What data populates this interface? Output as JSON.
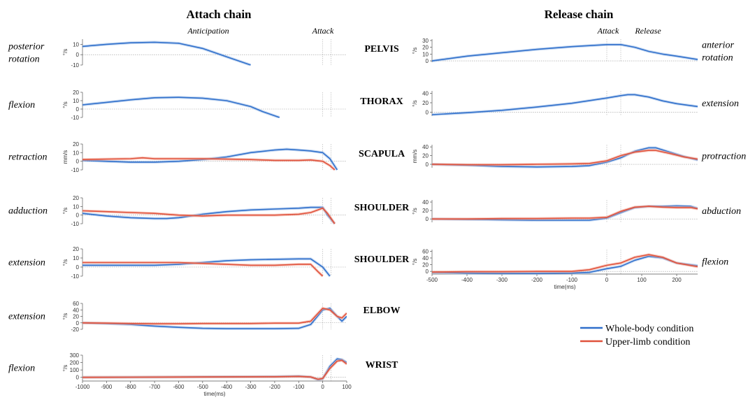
{
  "titles": {
    "left": "Attach chain",
    "right": "Release chain"
  },
  "events": {
    "left": [
      "Anticipation",
      "Attack"
    ],
    "right": [
      "Attack",
      "Release"
    ]
  },
  "segments": [
    "PELVIS",
    "THORAX",
    "SCAPULA",
    "SHOULDER",
    "SHOULDER",
    "ELBOW",
    "WRIST"
  ],
  "legend": {
    "whole": "Whole-body condition",
    "upper": "Upper-limb condition"
  },
  "colors": {
    "whole": "#2f6fcb",
    "upper": "#e0523c",
    "whole_band": "#9bbbe8",
    "upper_band": "#f2a898"
  },
  "chart_data": [
    {
      "type": "line",
      "panel": "attach",
      "segment": "PELVIS",
      "direction": "posterior rotation",
      "ylabel": "°/s",
      "yticks": [
        -10,
        0,
        10
      ],
      "ylim": [
        -10,
        15
      ],
      "xlim": [
        -1000,
        100
      ],
      "series": [
        {
          "name": "Whole-body condition",
          "x": [
            -1000,
            -900,
            -800,
            -700,
            -600,
            -500,
            -400,
            -350,
            -300
          ],
          "y": [
            8,
            10,
            11.5,
            12,
            11,
            6,
            -2,
            -6,
            -10
          ]
        }
      ]
    },
    {
      "type": "line",
      "panel": "attach",
      "segment": "THORAX",
      "direction": "flexion",
      "ylabel": "°/s",
      "yticks": [
        -10,
        0,
        10,
        20
      ],
      "ylim": [
        -10,
        20
      ],
      "xlim": [
        -1000,
        100
      ],
      "series": [
        {
          "name": "Whole-body condition",
          "x": [
            -1000,
            -900,
            -800,
            -700,
            -600,
            -500,
            -400,
            -300,
            -250,
            -180
          ],
          "y": [
            5,
            8,
            11,
            13.5,
            14,
            13,
            10,
            3,
            -3,
            -10
          ]
        }
      ]
    },
    {
      "type": "line",
      "panel": "attach",
      "segment": "SCAPULA",
      "direction": "retraction",
      "ylabel": "mm/s",
      "yticks": [
        -10,
        0,
        10,
        20
      ],
      "ylim": [
        -10,
        20
      ],
      "xlim": [
        -1000,
        100
      ],
      "series": [
        {
          "name": "Whole-body condition",
          "x": [
            -1000,
            -900,
            -800,
            -700,
            -600,
            -500,
            -400,
            -300,
            -200,
            -150,
            -100,
            -50,
            0,
            30,
            60
          ],
          "y": [
            1,
            0,
            -1,
            -1,
            0,
            2,
            5,
            10,
            13,
            14,
            13,
            12,
            10,
            3,
            -10
          ]
        },
        {
          "name": "Upper-limb condition",
          "x": [
            -1000,
            -900,
            -800,
            -750,
            -700,
            -600,
            -500,
            -400,
            -300,
            -200,
            -100,
            -50,
            0,
            30,
            50
          ],
          "y": [
            2,
            2.5,
            3,
            4,
            3,
            3,
            3,
            2.5,
            2,
            1,
            1,
            1.5,
            0,
            -5,
            -10
          ]
        }
      ]
    },
    {
      "type": "line",
      "panel": "attach",
      "segment": "SHOULDER",
      "direction": "adduction",
      "ylabel": "°/s",
      "yticks": [
        -10,
        0,
        10,
        20
      ],
      "ylim": [
        -10,
        20
      ],
      "xlim": [
        -1000,
        100
      ],
      "series": [
        {
          "name": "Whole-body condition",
          "x": [
            -1000,
            -900,
            -800,
            -700,
            -650,
            -600,
            -500,
            -400,
            -300,
            -200,
            -100,
            -50,
            0,
            20,
            50
          ],
          "y": [
            2,
            -1,
            -3,
            -4,
            -4,
            -3,
            1,
            4,
            6,
            7,
            8,
            9,
            9,
            0,
            -10
          ]
        },
        {
          "name": "Upper-limb condition",
          "x": [
            -1000,
            -900,
            -800,
            -700,
            -600,
            -500,
            -400,
            -300,
            -200,
            -100,
            -50,
            0,
            20,
            50
          ],
          "y": [
            5,
            4,
            3,
            2,
            0,
            -1,
            0,
            0,
            0,
            1,
            3,
            8,
            2,
            -10
          ]
        }
      ]
    },
    {
      "type": "line",
      "panel": "attach",
      "segment": "SHOULDER",
      "direction": "extension",
      "ylabel": "°/s",
      "yticks": [
        -10,
        0,
        10,
        20
      ],
      "ylim": [
        -10,
        20
      ],
      "xlim": [
        -1000,
        100
      ],
      "series": [
        {
          "name": "Whole-body condition",
          "x": [
            -1000,
            -900,
            -800,
            -700,
            -600,
            -500,
            -400,
            -300,
            -200,
            -100,
            -50,
            0,
            30
          ],
          "y": [
            2,
            2,
            2,
            2,
            3,
            5,
            7,
            8,
            8.5,
            9,
            9,
            0,
            -10
          ]
        },
        {
          "name": "Upper-limb condition",
          "x": [
            -1000,
            -900,
            -800,
            -700,
            -600,
            -500,
            -400,
            -300,
            -200,
            -100,
            -50,
            -20,
            0
          ],
          "y": [
            5,
            5,
            5,
            5,
            5,
            4,
            3,
            2,
            2,
            3,
            3,
            -5,
            -10
          ]
        }
      ]
    },
    {
      "type": "line",
      "panel": "attach",
      "segment": "ELBOW",
      "direction": "extension",
      "ylabel": "°/s",
      "yticks": [
        -20,
        0,
        20,
        40,
        60
      ],
      "ylim": [
        -20,
        60
      ],
      "xlim": [
        -1000,
        100
      ],
      "series": [
        {
          "name": "Whole-body condition",
          "x": [
            -1000,
            -900,
            -800,
            -700,
            -600,
            -500,
            -400,
            -300,
            -200,
            -100,
            -50,
            0,
            30,
            60,
            80,
            100
          ],
          "y": [
            0,
            -2,
            -5,
            -10,
            -14,
            -17,
            -18,
            -18,
            -18,
            -17,
            -5,
            40,
            45,
            20,
            5,
            20
          ]
        },
        {
          "name": "Upper-limb condition",
          "x": [
            -1000,
            -900,
            -800,
            -700,
            -600,
            -500,
            -400,
            -300,
            -200,
            -100,
            -50,
            0,
            30,
            60,
            80,
            100
          ],
          "y": [
            0,
            -1,
            -2,
            -3,
            -3,
            -2,
            -2,
            -2,
            -1,
            -1,
            5,
            45,
            40,
            20,
            15,
            30
          ]
        }
      ]
    },
    {
      "type": "line",
      "panel": "attach",
      "segment": "WRIST",
      "direction": "flexion",
      "ylabel": "°/s",
      "yticks": [
        0,
        100,
        200,
        300
      ],
      "ylim": [
        -50,
        300
      ],
      "xlim": [
        -1000,
        100
      ],
      "xlabel": "time(ms)",
      "xticks": [
        -1000,
        -900,
        -800,
        -700,
        -600,
        -500,
        -400,
        -300,
        -200,
        -100,
        0,
        100
      ],
      "series": [
        {
          "name": "Whole-body condition",
          "x": [
            -1000,
            -800,
            -600,
            -400,
            -200,
            -100,
            -50,
            -20,
            0,
            30,
            60,
            80,
            100
          ],
          "y": [
            0,
            2,
            5,
            8,
            10,
            15,
            5,
            -30,
            -20,
            150,
            250,
            240,
            200
          ]
        },
        {
          "name": "Upper-limb condition",
          "x": [
            -1000,
            -800,
            -600,
            -400,
            -200,
            -100,
            -50,
            -20,
            0,
            30,
            60,
            80,
            100
          ],
          "y": [
            0,
            2,
            4,
            6,
            8,
            12,
            5,
            -25,
            -15,
            120,
            220,
            230,
            180
          ]
        }
      ]
    },
    {
      "type": "line",
      "panel": "release",
      "segment": "PELVIS",
      "direction": "anterior rotation",
      "ylabel": "°/s",
      "yticks": [
        0,
        10,
        20,
        30
      ],
      "ylim": [
        -2,
        32
      ],
      "xlim": [
        -500,
        260
      ],
      "series": [
        {
          "name": "Whole-body condition",
          "x": [
            -500,
            -400,
            -300,
            -200,
            -100,
            0,
            40,
            80,
            120,
            160,
            200,
            260
          ],
          "y": [
            0,
            7,
            12,
            17,
            21,
            24,
            24,
            20,
            14,
            10,
            7,
            2
          ]
        }
      ]
    },
    {
      "type": "line",
      "panel": "release",
      "segment": "THORAX",
      "direction": "extension",
      "ylabel": "°/s",
      "yticks": [
        0,
        20,
        40
      ],
      "ylim": [
        -8,
        45
      ],
      "xlim": [
        -500,
        260
      ],
      "series": [
        {
          "name": "Whole-body condition",
          "x": [
            -500,
            -400,
            -300,
            -200,
            -100,
            0,
            40,
            60,
            80,
            120,
            160,
            200,
            260
          ],
          "y": [
            -5,
            -1,
            4,
            11,
            19,
            30,
            35,
            37,
            37,
            32,
            24,
            18,
            12
          ]
        }
      ]
    },
    {
      "type": "line",
      "panel": "release",
      "segment": "SCAPULA",
      "direction": "protraction",
      "ylabel": "mm/s",
      "yticks": [
        0,
        20,
        40
      ],
      "ylim": [
        -8,
        45
      ],
      "xlim": [
        -500,
        260
      ],
      "series": [
        {
          "name": "Whole-body condition",
          "x": [
            -500,
            -400,
            -300,
            -200,
            -100,
            -50,
            0,
            40,
            80,
            120,
            140,
            180,
            220,
            260
          ],
          "y": [
            0,
            -2,
            -5,
            -6,
            -5,
            -3,
            5,
            15,
            30,
            38,
            38,
            28,
            18,
            10
          ]
        },
        {
          "name": "Upper-limb condition",
          "x": [
            -500,
            -400,
            -300,
            -200,
            -100,
            -50,
            0,
            40,
            80,
            120,
            140,
            180,
            220,
            260
          ],
          "y": [
            0,
            -1,
            -1,
            0,
            1,
            2,
            8,
            20,
            28,
            32,
            32,
            25,
            17,
            12
          ]
        }
      ]
    },
    {
      "type": "line",
      "panel": "release",
      "segment": "SHOULDER",
      "direction": "abduction",
      "ylabel": "°/s",
      "yticks": [
        0,
        20,
        40
      ],
      "ylim": [
        -8,
        45
      ],
      "xlim": [
        -500,
        260
      ],
      "series": [
        {
          "name": "Whole-body condition",
          "x": [
            -500,
            -400,
            -300,
            -200,
            -100,
            -50,
            0,
            40,
            80,
            120,
            160,
            200,
            240,
            260
          ],
          "y": [
            0,
            -1,
            -2,
            -3,
            -3,
            -3,
            2,
            15,
            27,
            30,
            30,
            31,
            30,
            25
          ]
        },
        {
          "name": "Upper-limb condition",
          "x": [
            -500,
            -400,
            -300,
            -200,
            -100,
            -50,
            0,
            40,
            80,
            120,
            160,
            200,
            240,
            260
          ],
          "y": [
            0,
            0,
            1,
            1,
            2,
            2,
            4,
            18,
            28,
            30,
            28,
            27,
            27,
            24
          ]
        }
      ]
    },
    {
      "type": "line",
      "panel": "release",
      "segment": "SHOULDER",
      "direction": "flexion",
      "ylabel": "°/s",
      "yticks": [
        0,
        20,
        40,
        60
      ],
      "ylim": [
        -8,
        65
      ],
      "xlim": [
        -500,
        260
      ],
      "xlabel": "time(ms)",
      "xticks": [
        -500,
        -400,
        -300,
        -200,
        -100,
        0,
        100,
        200
      ],
      "series": [
        {
          "name": "Whole-body condition",
          "x": [
            -500,
            -400,
            -300,
            -200,
            -100,
            -50,
            0,
            40,
            80,
            120,
            160,
            200,
            260
          ],
          "y": [
            -3,
            -5,
            -6,
            -6,
            -5,
            -3,
            8,
            15,
            33,
            45,
            40,
            25,
            17
          ]
        },
        {
          "name": "Upper-limb condition",
          "x": [
            -500,
            -400,
            -300,
            -200,
            -100,
            -50,
            0,
            40,
            80,
            120,
            160,
            200,
            260
          ],
          "y": [
            -2,
            -1,
            -1,
            0,
            0,
            5,
            18,
            25,
            42,
            50,
            42,
            25,
            14
          ]
        }
      ]
    }
  ]
}
